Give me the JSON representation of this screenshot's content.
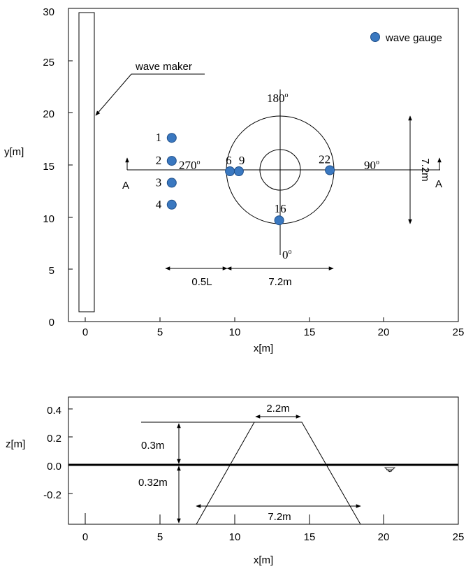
{
  "colors": {
    "gauge": "#3a78c0",
    "gauge_stroke": "#1f4f8a",
    "line": "#000000"
  },
  "plan_view": {
    "xlabel": "x[m]",
    "ylabel": "y[m]",
    "xlim": [
      -1,
      25
    ],
    "ylim": [
      0,
      30
    ],
    "xticks": [
      "0",
      "5",
      "10",
      "15",
      "20",
      "25"
    ],
    "yticks": [
      "0",
      "5",
      "10",
      "15",
      "20",
      "25",
      "30"
    ],
    "legend_label": "wave gauge",
    "wave_maker_label": "wave maker",
    "section_label_left": "A",
    "section_label_right": "A",
    "angles": {
      "deg_0": "0",
      "deg_90": "90",
      "deg_180": "180",
      "deg_270": "270",
      "degree_mark": "o"
    },
    "gauges": [
      {
        "label": "1",
        "x": 5.8,
        "y": 17.6
      },
      {
        "label": "2",
        "x": 5.8,
        "y": 15.4
      },
      {
        "label": "3",
        "x": 5.8,
        "y": 13.3
      },
      {
        "label": "4",
        "x": 5.8,
        "y": 11.2
      },
      {
        "label": "6",
        "x": 9.7,
        "y": 14.4
      },
      {
        "label": "9",
        "x": 10.3,
        "y": 14.4
      },
      {
        "label": "16",
        "x": 13.0,
        "y": 9.7
      },
      {
        "label": "22",
        "x": 16.4,
        "y": 14.5
      }
    ],
    "dim_half_wavelength": "0.5L",
    "dim_diameter": "7.2m",
    "dim_vertical": "7.2m"
  },
  "section_view": {
    "xlabel": "x[m]",
    "ylabel": "z[m]",
    "xlim": [
      -1,
      25
    ],
    "ylim": [
      -0.4,
      0.45
    ],
    "xticks": [
      "0",
      "5",
      "10",
      "15",
      "20",
      "25"
    ],
    "yticks": [
      "0.4",
      "0.2",
      "0.0",
      "-0.2"
    ],
    "dim_top_width": "2.2m",
    "dim_height": "0.3m",
    "dim_depth": "0.32m",
    "dim_base": "7.2m"
  }
}
